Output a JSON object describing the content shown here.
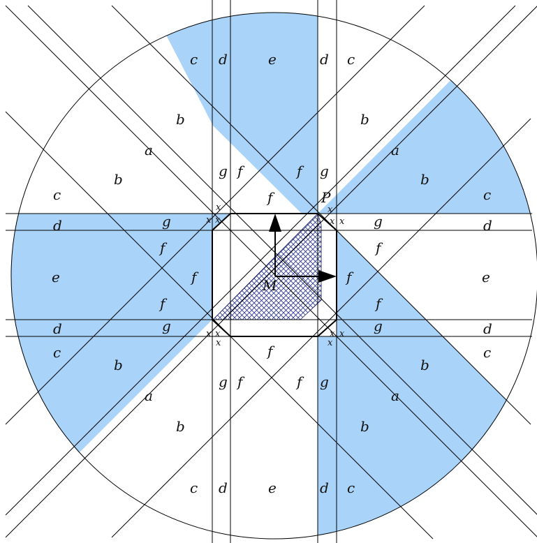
{
  "fill_color": "#a9d3f8",
  "line_color": "#000000",
  "hatch_color": "#2d3a8c",
  "labels": {
    "a": "a",
    "b": "b",
    "c": "c",
    "d": "d",
    "e": "e",
    "f": "f",
    "g": "g",
    "x": "x",
    "P": "P",
    "M": "M"
  }
}
